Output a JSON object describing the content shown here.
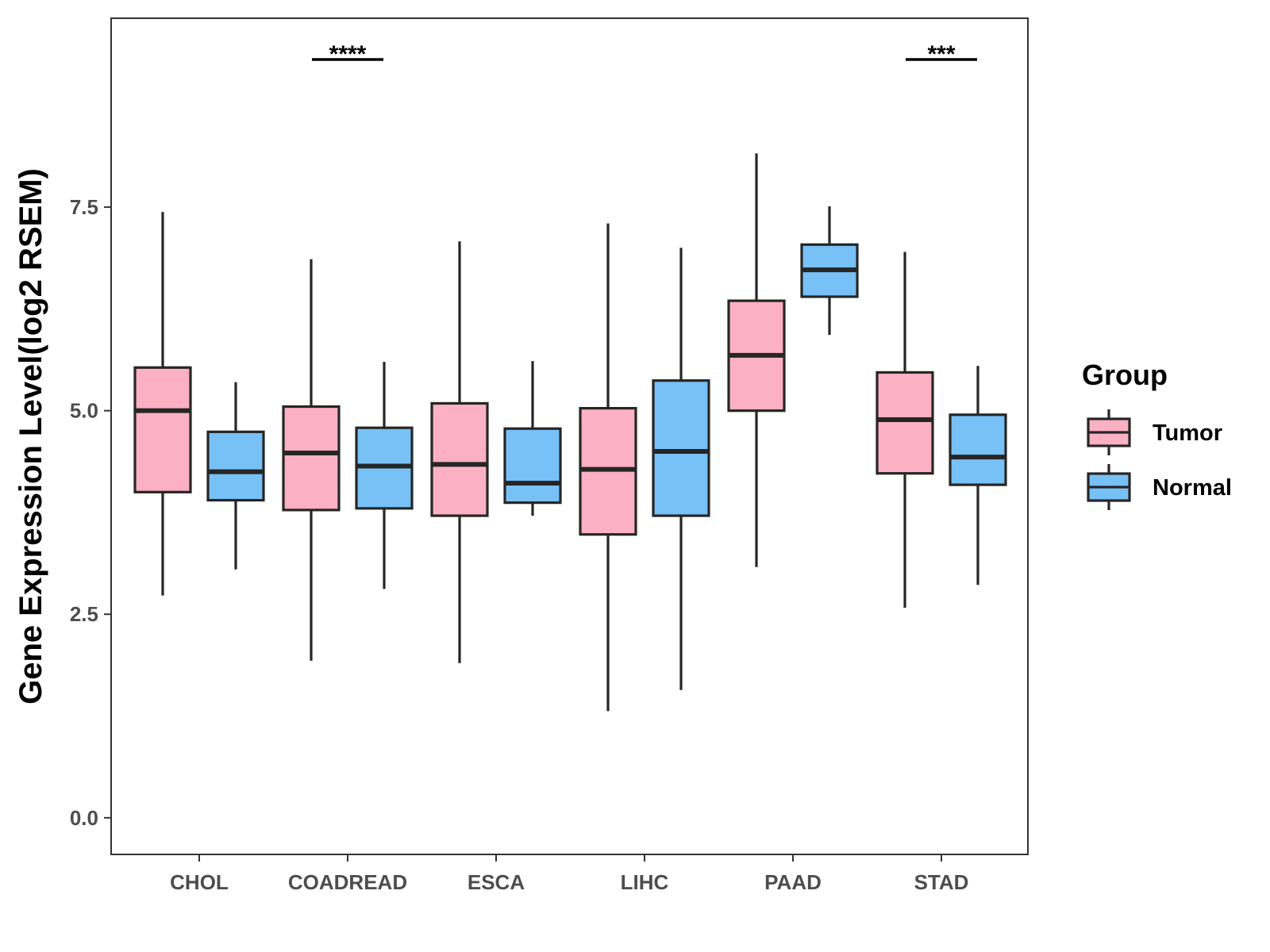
{
  "colors": {
    "tumor": "#fbb1c3",
    "normal": "#78c1f7",
    "outline": "#262626",
    "panel_border": "#333333",
    "tick_text": "#4d4d4d"
  },
  "chart_data": {
    "type": "box",
    "title": "",
    "xlabel": "",
    "ylabel": "Gene Expression Level(log2 RSEM)",
    "ylim": [
      -0.45,
      9.82
    ],
    "yticks": [
      0.0,
      2.5,
      5.0,
      7.5
    ],
    "ytick_labels": [
      "0.0",
      "2.5",
      "5.0",
      "7.5"
    ],
    "grid": false,
    "legend_position": "right",
    "legend_title": "Group",
    "categories": [
      "CHOL",
      "COADREAD",
      "ESCA",
      "LIHC",
      "PAAD",
      "STAD"
    ],
    "series": [
      {
        "name": "Tumor",
        "color": "#fbb1c3",
        "boxes": [
          {
            "whisker_low": 2.73,
            "q1": 4.0,
            "median": 5.0,
            "q3": 5.53,
            "whisker_high": 7.44
          },
          {
            "whisker_low": 1.93,
            "q1": 3.78,
            "median": 4.48,
            "q3": 5.05,
            "whisker_high": 6.86
          },
          {
            "whisker_low": 1.9,
            "q1": 3.71,
            "median": 4.34,
            "q3": 5.09,
            "whisker_high": 7.08
          },
          {
            "whisker_low": 1.31,
            "q1": 3.48,
            "median": 4.28,
            "q3": 5.03,
            "whisker_high": 7.3
          },
          {
            "whisker_low": 3.08,
            "q1": 5.0,
            "median": 5.68,
            "q3": 6.35,
            "whisker_high": 8.16
          },
          {
            "whisker_low": 2.58,
            "q1": 4.23,
            "median": 4.89,
            "q3": 5.47,
            "whisker_high": 6.95
          }
        ]
      },
      {
        "name": "Normal",
        "color": "#78c1f7",
        "boxes": [
          {
            "whisker_low": 3.05,
            "q1": 3.9,
            "median": 4.25,
            "q3": 4.74,
            "whisker_high": 5.35
          },
          {
            "whisker_low": 2.81,
            "q1": 3.8,
            "median": 4.32,
            "q3": 4.79,
            "whisker_high": 5.6
          },
          {
            "whisker_low": 3.71,
            "q1": 3.87,
            "median": 4.11,
            "q3": 4.78,
            "whisker_high": 5.61
          },
          {
            "whisker_low": 1.57,
            "q1": 3.71,
            "median": 4.5,
            "q3": 5.37,
            "whisker_high": 7.0
          },
          {
            "whisker_low": 5.93,
            "q1": 6.4,
            "median": 6.73,
            "q3": 7.04,
            "whisker_high": 7.51
          },
          {
            "whisker_low": 2.86,
            "q1": 4.09,
            "median": 4.43,
            "q3": 4.95,
            "whisker_high": 5.55
          }
        ]
      }
    ],
    "annotations": [
      {
        "category": "COADREAD",
        "label": "****"
      },
      {
        "category": "STAD",
        "label": "***"
      }
    ]
  }
}
